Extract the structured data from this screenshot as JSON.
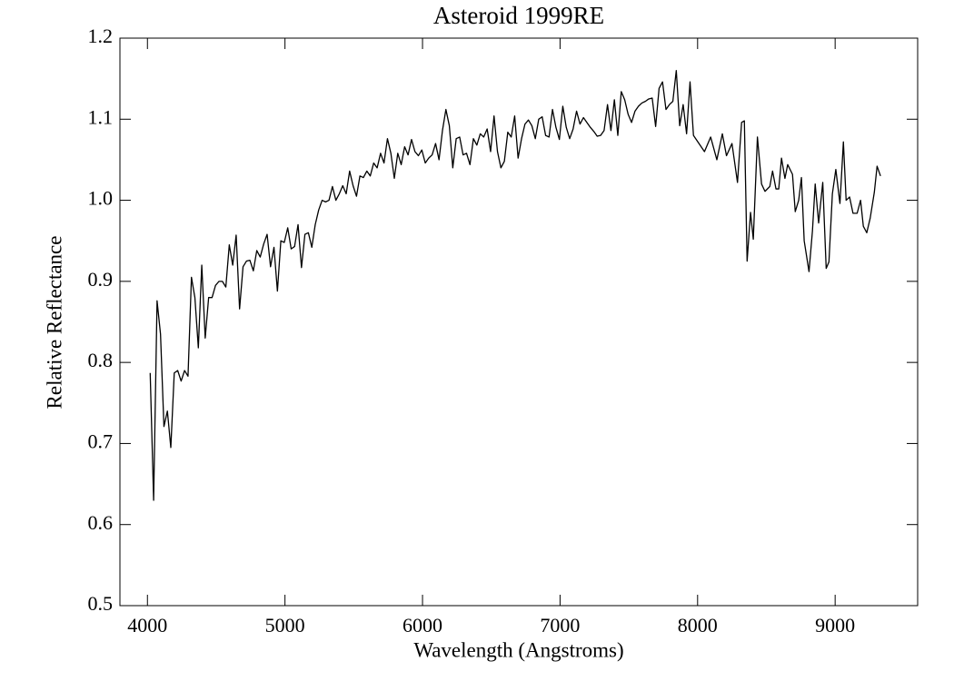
{
  "chart_data": {
    "type": "line",
    "title": "Asteroid 1999RE",
    "x_label": "Wavelength (Angstroms)",
    "y_label": "Relative Reflectance",
    "xlim": [
      3800,
      9600
    ],
    "ylim": [
      0.5,
      1.2
    ],
    "xticks": [
      4000,
      5000,
      6000,
      7000,
      8000,
      9000
    ],
    "yticks": [
      0.5,
      0.6,
      0.7,
      0.8,
      0.9,
      {
        "value": 1,
        "label": "1.0"
      },
      1.1,
      1.2
    ],
    "grid": false,
    "x": [
      4020,
      4045,
      4070,
      4095,
      4120,
      4145,
      4170,
      4195,
      4220,
      4245,
      4270,
      4295,
      4320,
      4345,
      4370,
      4395,
      4420,
      4445,
      4470,
      4495,
      4520,
      4545,
      4570,
      4595,
      4620,
      4645,
      4670,
      4695,
      4720,
      4745,
      4770,
      4795,
      4820,
      4845,
      4870,
      4895,
      4920,
      4945,
      4970,
      4995,
      5020,
      5045,
      5070,
      5095,
      5120,
      5145,
      5170,
      5195,
      5220,
      5245,
      5270,
      5295,
      5320,
      5345,
      5370,
      5395,
      5420,
      5445,
      5470,
      5495,
      5520,
      5545,
      5570,
      5595,
      5620,
      5645,
      5670,
      5695,
      5720,
      5745,
      5770,
      5795,
      5820,
      5845,
      5870,
      5895,
      5920,
      5945,
      5970,
      5995,
      6020,
      6045,
      6070,
      6095,
      6120,
      6145,
      6170,
      6195,
      6220,
      6245,
      6270,
      6295,
      6320,
      6345,
      6370,
      6395,
      6420,
      6445,
      6470,
      6495,
      6520,
      6545,
      6570,
      6595,
      6620,
      6645,
      6670,
      6695,
      6720,
      6745,
      6770,
      6795,
      6820,
      6845,
      6870,
      6895,
      6920,
      6945,
      6970,
      6995,
      7020,
      7045,
      7070,
      7095,
      7120,
      7145,
      7170,
      7195,
      7220,
      7245,
      7270,
      7295,
      7320,
      7345,
      7370,
      7395,
      7420,
      7445,
      7470,
      7495,
      7520,
      7545,
      7570,
      7595,
      7620,
      7645,
      7670,
      7695,
      7720,
      7745,
      7770,
      7795,
      7820,
      7845,
      7870,
      7895,
      7920,
      7945,
      7970,
      8050,
      8095,
      8140,
      8180,
      8210,
      8250,
      8290,
      8320,
      8340,
      8360,
      8385,
      8405,
      8435,
      8465,
      8490,
      8525,
      8545,
      8570,
      8590,
      8610,
      8635,
      8655,
      8690,
      8710,
      8735,
      8755,
      8775,
      8810,
      8835,
      8855,
      8880,
      8910,
      8935,
      8955,
      8980,
      9005,
      9035,
      9060,
      9080,
      9105,
      9130,
      9160,
      9185,
      9205,
      9230,
      9255,
      9285,
      9305,
      9330
    ],
    "series": [
      {
        "name": "1999RE",
        "color": "#000000",
        "values": [
          0.787,
          0.63,
          0.876,
          0.835,
          0.721,
          0.74,
          0.695,
          0.787,
          0.79,
          0.777,
          0.79,
          0.783,
          0.905,
          0.88,
          0.818,
          0.92,
          0.83,
          0.88,
          0.88,
          0.895,
          0.9,
          0.9,
          0.893,
          0.945,
          0.92,
          0.957,
          0.866,
          0.918,
          0.925,
          0.926,
          0.913,
          0.938,
          0.93,
          0.946,
          0.958,
          0.918,
          0.942,
          0.888,
          0.95,
          0.948,
          0.966,
          0.94,
          0.943,
          0.97,
          0.917,
          0.958,
          0.96,
          0.942,
          0.97,
          0.988,
          1.0,
          0.998,
          1.0,
          1.017,
          1.0,
          1.008,
          1.018,
          1.008,
          1.036,
          1.018,
          1.005,
          1.03,
          1.028,
          1.036,
          1.03,
          1.046,
          1.04,
          1.058,
          1.046,
          1.076,
          1.058,
          1.027,
          1.058,
          1.044,
          1.066,
          1.056,
          1.075,
          1.06,
          1.055,
          1.062,
          1.046,
          1.052,
          1.056,
          1.07,
          1.05,
          1.086,
          1.112,
          1.092,
          1.04,
          1.076,
          1.078,
          1.056,
          1.058,
          1.044,
          1.076,
          1.068,
          1.082,
          1.078,
          1.088,
          1.06,
          1.104,
          1.06,
          1.04,
          1.048,
          1.084,
          1.078,
          1.104,
          1.052,
          1.076,
          1.094,
          1.099,
          1.092,
          1.076,
          1.1,
          1.103,
          1.08,
          1.078,
          1.112,
          1.09,
          1.075,
          1.116,
          1.09,
          1.076,
          1.088,
          1.11,
          1.094,
          1.102,
          1.096,
          1.09,
          1.085,
          1.079,
          1.08,
          1.086,
          1.118,
          1.086,
          1.124,
          1.08,
          1.134,
          1.124,
          1.106,
          1.096,
          1.11,
          1.116,
          1.12,
          1.122,
          1.125,
          1.126,
          1.091,
          1.138,
          1.146,
          1.112,
          1.118,
          1.122,
          1.16,
          1.092,
          1.118,
          1.082,
          1.146,
          1.08,
          1.06,
          1.078,
          1.05,
          1.082,
          1.055,
          1.07,
          1.022,
          1.096,
          1.098,
          0.925,
          0.985,
          0.952,
          1.078,
          1.02,
          1.011,
          1.017,
          1.036,
          1.014,
          1.014,
          1.052,
          1.027,
          1.044,
          1.032,
          0.986,
          1.0,
          1.028,
          0.95,
          0.912,
          0.962,
          1.02,
          0.972,
          1.022,
          0.916,
          0.924,
          1.008,
          1.038,
          0.996,
          1.072,
          1.0,
          1.004,
          0.984,
          0.984,
          1.0,
          0.968,
          0.96,
          0.978,
          1.01,
          1.042,
          1.03
        ]
      }
    ]
  }
}
